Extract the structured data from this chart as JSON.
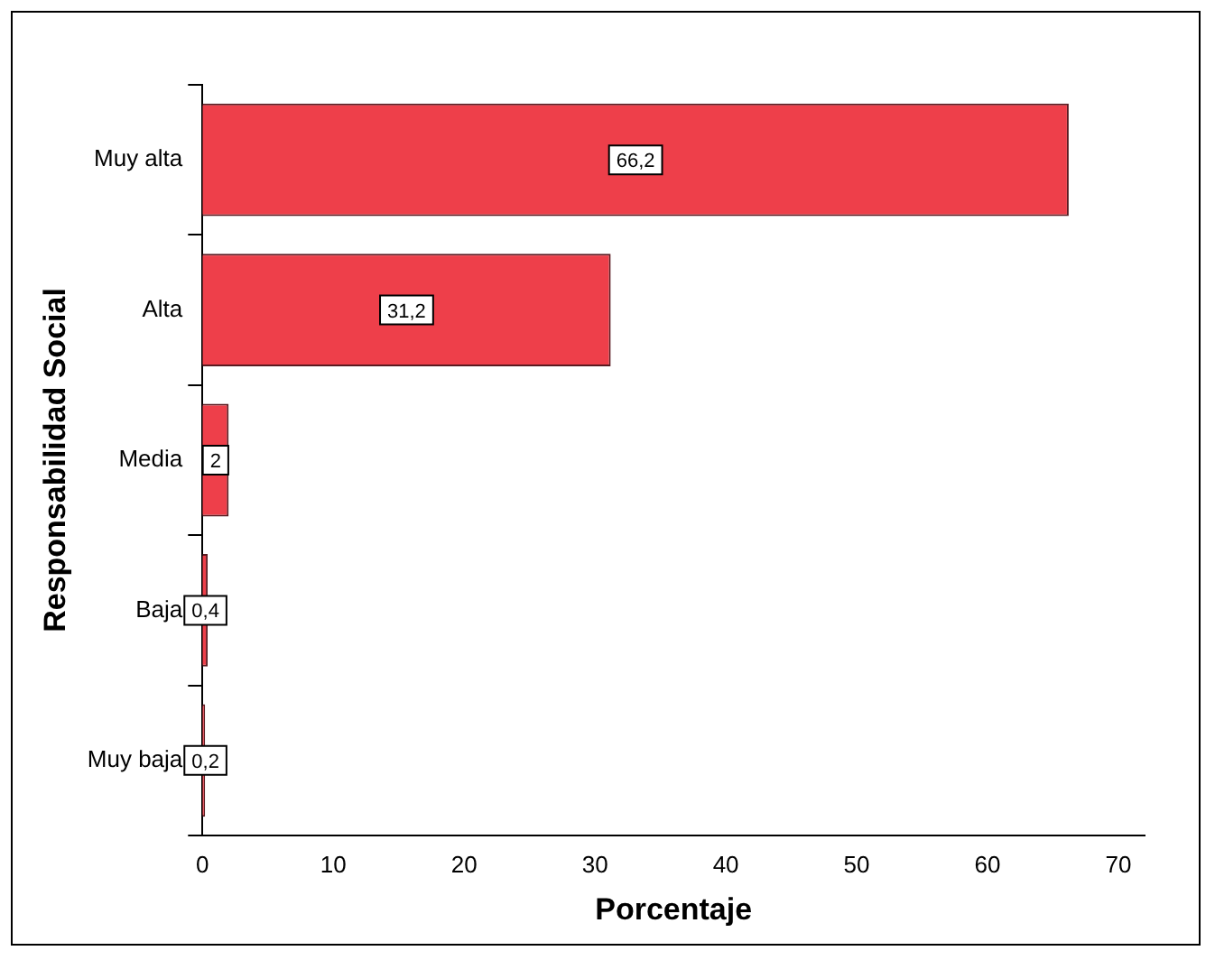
{
  "chart_data": {
    "type": "bar",
    "orientation": "horizontal",
    "xlabel": "Porcentaje",
    "ylabel": "Responsabilidad Social",
    "categories": [
      "Muy alta",
      "Alta",
      "Media",
      "Baja",
      "Muy baja"
    ],
    "values": [
      66.2,
      31.2,
      2,
      0.4,
      0.2
    ],
    "value_labels": [
      "66,2",
      "31,2",
      "2",
      "0,4",
      "0,2"
    ],
    "color": "#ee3f4a",
    "xlim": [
      0,
      72
    ],
    "xticks": [
      0,
      10,
      20,
      30,
      40,
      50,
      60,
      70
    ],
    "grid": false,
    "legend": false
  }
}
